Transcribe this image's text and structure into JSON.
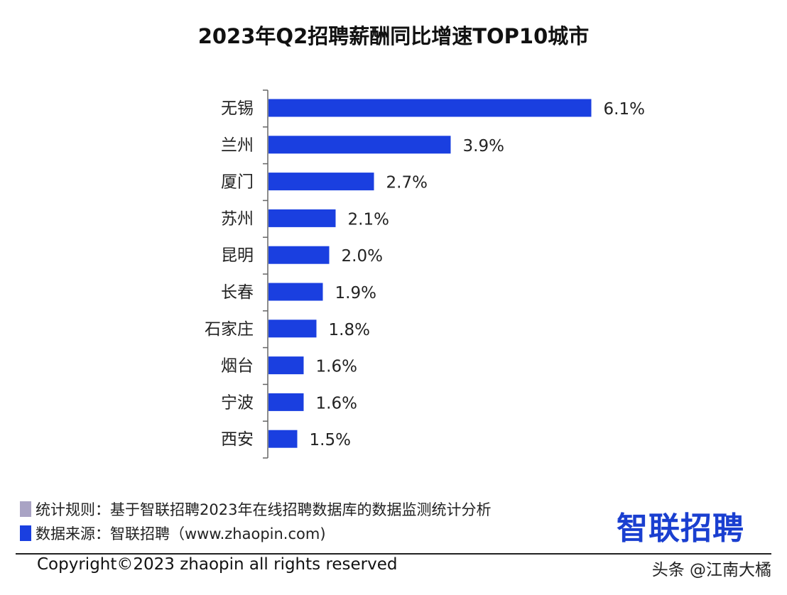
{
  "chart_data": {
    "type": "bar",
    "orientation": "horizontal",
    "title": "2023年Q2招聘薪酬同比增速TOP10城市",
    "categories": [
      "无锡",
      "兰州",
      "厦门",
      "苏州",
      "昆明",
      "长春",
      "石家庄",
      "烟台",
      "宁波",
      "西安"
    ],
    "values": [
      6.1,
      3.9,
      2.7,
      2.1,
      2.0,
      1.9,
      1.8,
      1.6,
      1.6,
      1.5
    ],
    "data_labels": [
      "6.1%",
      "3.9%",
      "2.7%",
      "2.1%",
      "2.0%",
      "1.9%",
      "1.8%",
      "1.6%",
      "1.6%",
      "1.5%"
    ],
    "unit": "%",
    "xlim": [
      1.05,
      6.5
    ],
    "grid": false,
    "bar_color": "#1a3fe0"
  },
  "notes": {
    "rule_label": "统计规则：基于智联招聘2023年在线招聘数据库的数据监测统计分析",
    "source_label": "数据来源：智联招聘（www.zhaopin.com)",
    "rule_color": "#a9a3c4",
    "source_color": "#1a3fe0"
  },
  "logo": "智联招聘",
  "copyright": "Copyright©2023 zhaopin all rights reserved",
  "watermark": "头条 @江南大橘"
}
